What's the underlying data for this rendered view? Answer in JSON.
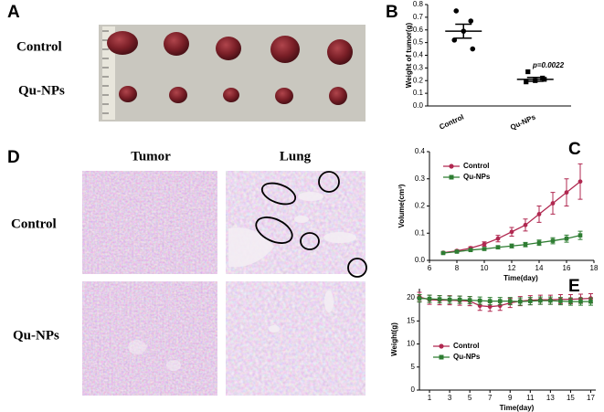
{
  "panels": {
    "A": {
      "label": "A",
      "rows": [
        "Control",
        "Qu-NPs"
      ]
    },
    "D": {
      "label": "D",
      "columns": [
        "Tumor",
        "Lung"
      ],
      "rows": [
        "Control",
        "Qu-NPs"
      ]
    }
  },
  "chart_data": [
    {
      "type": "strip",
      "panel_label": "B",
      "ylabel": "Weight of tumor(g)",
      "categories": [
        "Control",
        "Qu-NPs"
      ],
      "points": [
        [
          0.75,
          0.67,
          0.59,
          0.52,
          0.45
        ],
        [
          0.27,
          0.22,
          0.2,
          0.19,
          0.21
        ]
      ],
      "mean": [
        0.59,
        0.21
      ],
      "error": [
        0.055,
        0.015
      ],
      "color": "#000000",
      "annotation": "p=0.0022",
      "ylim": [
        0,
        0.8
      ],
      "yticks": [
        {
          "value": 0,
          "label": "0.0"
        },
        0.1,
        0.2,
        0.3,
        0.4,
        0.5,
        0.6,
        0.7,
        0.8
      ]
    },
    {
      "type": "line",
      "panel_label": "C",
      "xlabel": "Time(day)",
      "ylabel": "Volume(cm³)",
      "legend": "upper left",
      "x": [
        7,
        8,
        9,
        10,
        11,
        12,
        13,
        14,
        15,
        16,
        17
      ],
      "series": [
        {
          "name": "Control",
          "color": "#b02850",
          "marker": "circle",
          "values": [
            0.028,
            0.035,
            0.045,
            0.06,
            0.08,
            0.105,
            0.13,
            0.17,
            0.21,
            0.25,
            0.29
          ],
          "errors": [
            0.003,
            0.004,
            0.005,
            0.008,
            0.012,
            0.016,
            0.022,
            0.03,
            0.04,
            0.05,
            0.065
          ]
        },
        {
          "name": "Qu-NPs",
          "color": "#2e7d32",
          "marker": "square",
          "values": [
            0.027,
            0.032,
            0.038,
            0.042,
            0.048,
            0.053,
            0.058,
            0.065,
            0.072,
            0.08,
            0.092
          ],
          "errors": [
            0.003,
            0.003,
            0.004,
            0.005,
            0.006,
            0.007,
            0.008,
            0.01,
            0.011,
            0.013,
            0.015
          ]
        }
      ],
      "xlim": [
        6,
        18
      ],
      "xticks": [
        6,
        8,
        10,
        12,
        14,
        16,
        18
      ],
      "ylim": [
        0,
        0.4
      ],
      "yticks": [
        {
          "value": 0,
          "label": "0.0"
        },
        0.1,
        0.2,
        0.3,
        0.4
      ]
    },
    {
      "type": "line",
      "panel_label": "E",
      "xlabel": "Time(day)",
      "ylabel": "Weight(g)",
      "legend": "lower left",
      "x": [
        0,
        1,
        2,
        3,
        4,
        5,
        6,
        7,
        8,
        9,
        10,
        11,
        12,
        13,
        14,
        15,
        16,
        17
      ],
      "series": [
        {
          "name": "Control",
          "color": "#b02850",
          "marker": "circle",
          "values": [
            20.2,
            19.6,
            19.5,
            19.5,
            19.4,
            19.3,
            18.3,
            18.1,
            18.3,
            18.9,
            19.3,
            19.5,
            19.6,
            19.6,
            19.7,
            19.7,
            19.8,
            19.9
          ],
          "errors": [
            1,
            1,
            1,
            1,
            1,
            1,
            1,
            1,
            1,
            1,
            1,
            1,
            1,
            1,
            1,
            1,
            1,
            1
          ]
        },
        {
          "name": "Qu-NPs",
          "color": "#2e7d32",
          "marker": "square",
          "values": [
            19.9,
            19.8,
            19.7,
            19.6,
            19.6,
            19.5,
            19.4,
            19.3,
            19.3,
            19.3,
            19.2,
            19.3,
            19.4,
            19.4,
            19.3,
            19.2,
            19.2,
            19.2
          ],
          "errors": [
            0.8,
            0.8,
            0.8,
            0.8,
            0.8,
            0.8,
            0.8,
            0.8,
            0.8,
            0.8,
            0.8,
            0.8,
            0.8,
            0.8,
            0.8,
            0.8,
            0.8,
            0.8
          ]
        }
      ],
      "xlim": [
        0,
        17.5
      ],
      "xticks": [
        1,
        3,
        5,
        7,
        9,
        11,
        13,
        15,
        17
      ],
      "ylim": [
        0,
        22
      ],
      "yticks": [
        0,
        5,
        10,
        15,
        20
      ]
    }
  ]
}
